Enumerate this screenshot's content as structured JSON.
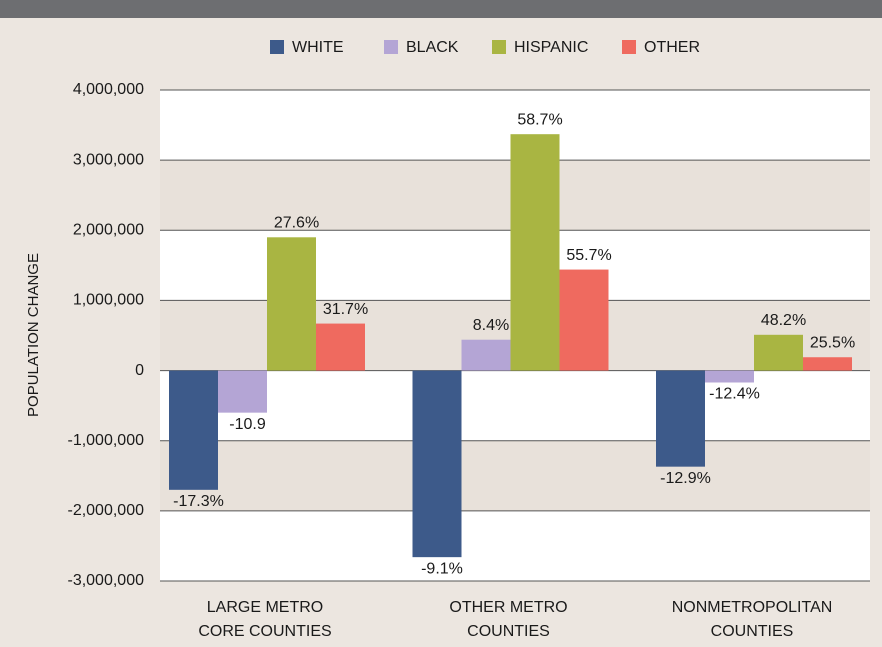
{
  "chart_data": {
    "type": "bar",
    "ylabel": "POPULATION CHANGE",
    "categories": [
      [
        "LARGE METRO",
        "CORE COUNTIES"
      ],
      [
        "OTHER METRO",
        "COUNTIES"
      ],
      [
        "NONMETROPOLITAN",
        "COUNTIES"
      ]
    ],
    "series": [
      {
        "name": "WHITE",
        "color": "#3d5a8a",
        "values": [
          -1700000,
          -2660000,
          -1370000
        ],
        "labels": [
          "-17.3%",
          "-9.1%",
          "-12.9%"
        ]
      },
      {
        "name": "BLACK",
        "color": "#b4a5d5",
        "values": [
          -600000,
          440000,
          -170000
        ],
        "labels": [
          "-10.9",
          "8.4%",
          "-12.4%"
        ]
      },
      {
        "name": "HISPANIC",
        "color": "#a9b542",
        "values": [
          1900000,
          3370000,
          510000
        ],
        "labels": [
          "27.6%",
          "58.7%",
          "48.2%"
        ]
      },
      {
        "name": "OTHER",
        "color": "#ef6a5f",
        "values": [
          670000,
          1440000,
          190000
        ],
        "labels": [
          "31.7%",
          "55.7%",
          "25.5%"
        ]
      }
    ],
    "ylim": [
      -3000000,
      4000000
    ],
    "yticks": [
      {
        "value": 4000000,
        "label": "4,000,000"
      },
      {
        "value": 3000000,
        "label": "3,000,000"
      },
      {
        "value": 2000000,
        "label": "2,000,000"
      },
      {
        "value": 1000000,
        "label": "1,000,000"
      },
      0,
      {
        "value": -1000000,
        "label": "-1,000,000"
      },
      {
        "value": -2000000,
        "label": "-2,000,000"
      },
      {
        "value": -3000000,
        "label": "-3,000,000"
      }
    ],
    "grid": true,
    "legend": "top"
  }
}
